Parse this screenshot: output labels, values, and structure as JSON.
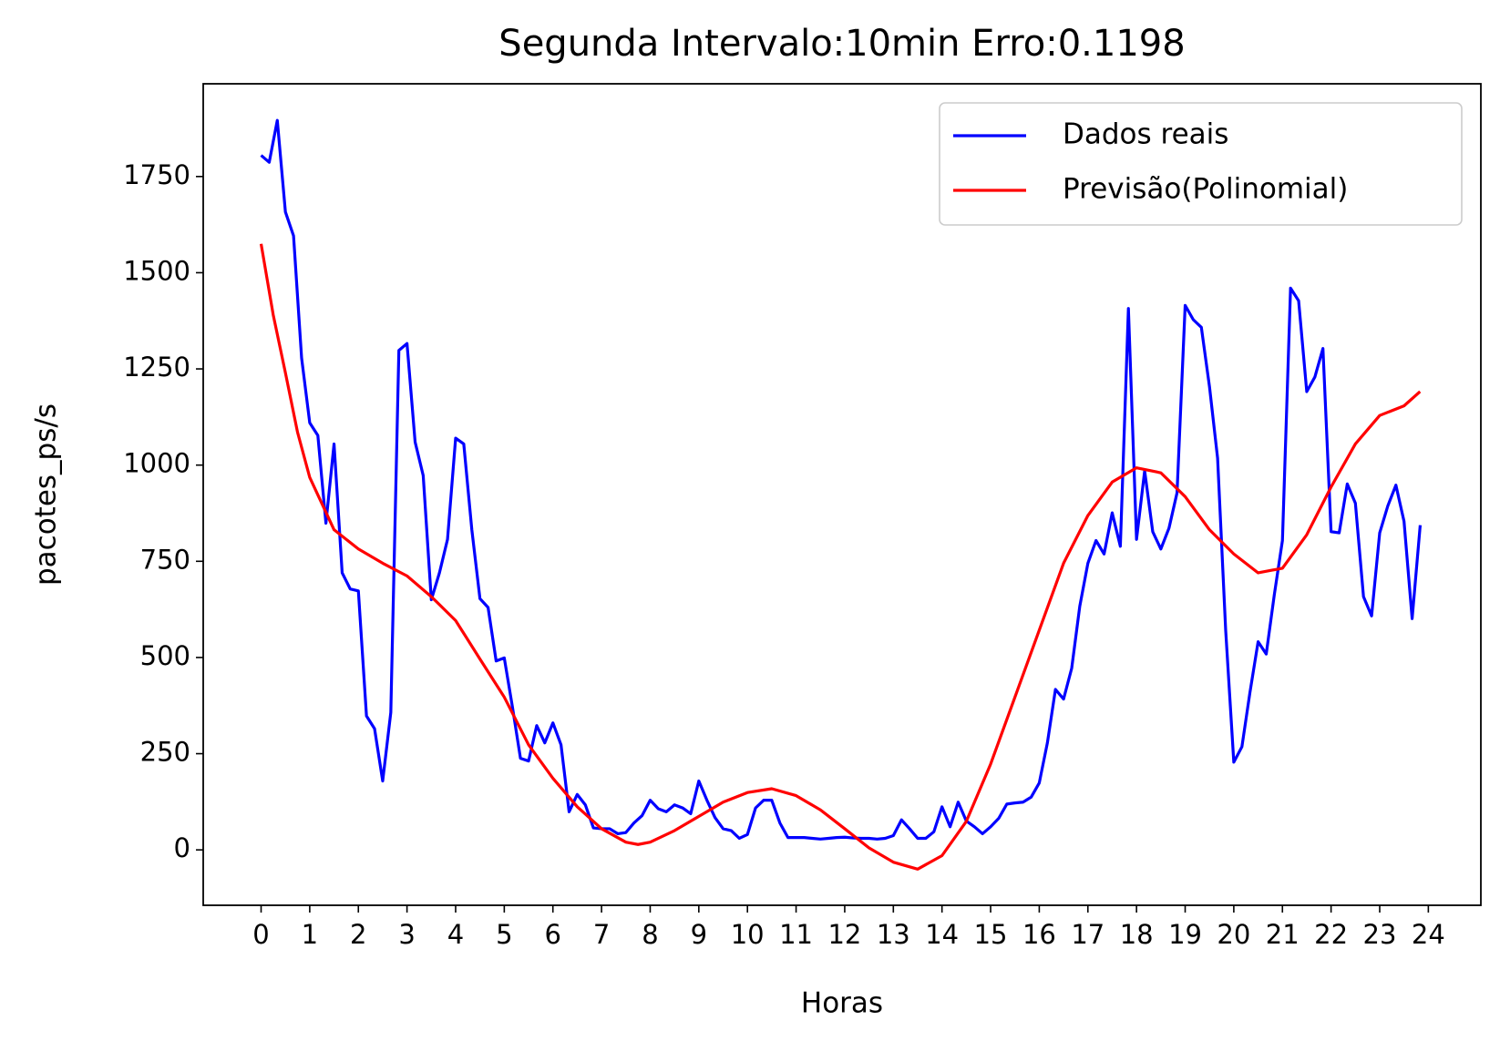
{
  "chart_data": {
    "type": "line",
    "title": "Segunda Intervalo:10min Erro:0.1198",
    "xlabel": "Horas",
    "ylabel": "pacotes_ps/s",
    "xlim": [
      -1.19,
      25.08
    ],
    "ylim": [
      -144,
      1991
    ],
    "xticks": [
      0,
      1,
      2,
      3,
      4,
      5,
      6,
      7,
      8,
      9,
      10,
      11,
      12,
      13,
      14,
      15,
      16,
      17,
      18,
      19,
      20,
      21,
      22,
      23,
      24
    ],
    "yticks": [
      0,
      250,
      500,
      750,
      1000,
      1250,
      1500,
      1750
    ],
    "legend": "upper right",
    "grid": false,
    "series": [
      {
        "name": "Dados reais",
        "color": "#0000ff",
        "x": [
          0,
          0.167,
          0.333,
          0.5,
          0.667,
          0.833,
          1,
          1.167,
          1.333,
          1.5,
          1.667,
          1.833,
          2,
          2.167,
          2.333,
          2.5,
          2.667,
          2.833,
          3,
          3.167,
          3.333,
          3.5,
          3.667,
          3.833,
          4,
          4.167,
          4.333,
          4.5,
          4.667,
          4.833,
          5,
          5.167,
          5.333,
          5.5,
          5.667,
          5.833,
          6,
          6.167,
          6.333,
          6.5,
          6.667,
          6.833,
          7,
          7.167,
          7.333,
          7.5,
          7.667,
          7.833,
          8,
          8.167,
          8.333,
          8.5,
          8.667,
          8.833,
          9,
          9.167,
          9.333,
          9.5,
          9.667,
          9.833,
          10,
          10.167,
          10.333,
          10.5,
          10.667,
          10.833,
          11,
          11.167,
          11.333,
          11.5,
          11.667,
          11.833,
          12,
          12.167,
          12.333,
          12.5,
          12.667,
          12.833,
          13,
          13.167,
          13.333,
          13.5,
          13.667,
          13.833,
          14,
          14.167,
          14.333,
          14.5,
          14.667,
          14.833,
          15,
          15.167,
          15.333,
          15.5,
          15.667,
          15.833,
          16,
          16.167,
          16.333,
          16.5,
          16.667,
          16.833,
          17,
          17.167,
          17.333,
          17.5,
          17.667,
          17.833,
          18,
          18.167,
          18.333,
          18.5,
          18.667,
          18.833,
          19,
          19.167,
          19.333,
          19.5,
          19.667,
          19.833,
          20,
          20.167,
          20.333,
          20.5,
          20.667,
          20.833,
          21,
          21.167,
          21.333,
          21.5,
          21.667,
          21.833,
          22,
          22.167,
          22.333,
          22.5,
          22.667,
          22.833,
          23,
          23.167,
          23.333,
          23.5,
          23.667,
          23.833
        ],
        "values": [
          1805,
          1787,
          1896,
          1658,
          1596,
          1278,
          1110,
          1077,
          849,
          1055,
          720,
          678,
          673,
          348,
          315,
          179,
          357,
          1298,
          1316,
          1060,
          973,
          650,
          720,
          807,
          1070,
          1055,
          832,
          653,
          630,
          491,
          499,
          372,
          238,
          231,
          323,
          278,
          330,
          273,
          99,
          144,
          117,
          57,
          55,
          55,
          42,
          45,
          70,
          89,
          129,
          107,
          99,
          117,
          109,
          94,
          179,
          129,
          84,
          55,
          50,
          30,
          40,
          109,
          129,
          129,
          70,
          32,
          32,
          32,
          30,
          28,
          30,
          32,
          33,
          31,
          30,
          30,
          28,
          30,
          37,
          78,
          55,
          30,
          30,
          47,
          112,
          60,
          124,
          75,
          60,
          42,
          60,
          82,
          119,
          122,
          124,
          137,
          174,
          278,
          417,
          392,
          472,
          633,
          745,
          804,
          769,
          876,
          789,
          1407,
          807,
          985,
          827,
          782,
          836,
          928,
          1415,
          1378,
          1358,
          1204,
          1018,
          571,
          228,
          268,
          410,
          541,
          509,
          663,
          804,
          1460,
          1427,
          1191,
          1229,
          1303,
          827,
          824,
          951,
          901,
          658,
          608,
          824,
          894,
          948,
          854,
          601,
          844
        ]
      },
      {
        "name": "Previsão(Polinomial)",
        "color": "#ff0000",
        "x": [
          0,
          0.25,
          0.5,
          0.75,
          1,
          1.5,
          2,
          2.5,
          3,
          3.5,
          4,
          4.5,
          5,
          5.5,
          6,
          6.5,
          7,
          7.5,
          7.75,
          8,
          8.5,
          9,
          9.5,
          10,
          10.5,
          11,
          11.5,
          12,
          12.5,
          13,
          13.5,
          14,
          14.5,
          15,
          15.5,
          16,
          16.5,
          17,
          17.5,
          18,
          18.5,
          19,
          19.5,
          20,
          20.5,
          21,
          21.5,
          22,
          22.5,
          23,
          23.5,
          23.83
        ],
        "values": [
          1575,
          1390,
          1240,
          1085,
          968,
          832,
          782,
          745,
          712,
          658,
          596,
          496,
          397,
          273,
          186,
          112,
          55,
          20,
          14,
          20,
          50,
          87,
          124,
          149,
          159,
          141,
          104,
          55,
          5,
          -32,
          -50,
          -15,
          74,
          223,
          397,
          571,
          745,
          869,
          956,
          993,
          980,
          918,
          832,
          769,
          720,
          732,
          819,
          943,
          1055,
          1129,
          1154,
          1191
        ]
      }
    ]
  }
}
